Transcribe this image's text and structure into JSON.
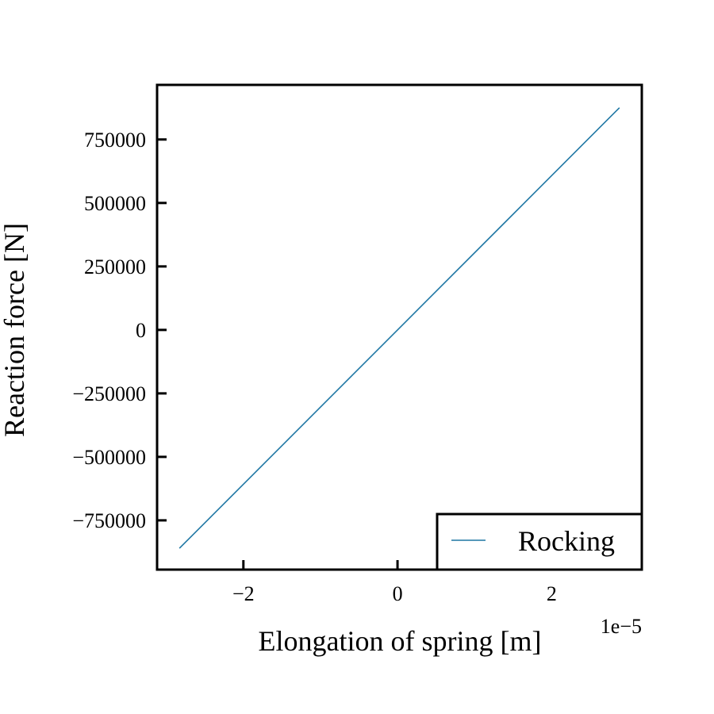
{
  "chart_data": {
    "type": "line",
    "title": "",
    "xlabel": "Elongation of spring [m]",
    "ylabel": "Reaction force [N]",
    "x_offset_label": "1e−5",
    "x_scale_factor": 1e-05,
    "xlim": [
      -3.12e-05,
      3.17e-05
    ],
    "ylim": [
      -944000,
      965000
    ],
    "x_ticks": [
      -2e-05,
      0,
      2e-05
    ],
    "x_tick_labels": [
      "−2",
      "0",
      "2"
    ],
    "y_ticks": [
      -750000,
      -500000,
      -250000,
      0,
      250000,
      500000,
      750000
    ],
    "y_tick_labels": [
      "−750000",
      "−500000",
      "−250000",
      "0",
      "250000",
      "500000",
      "750000"
    ],
    "grid": false,
    "legend_position": "lower-right",
    "series": [
      {
        "name": "Rocking",
        "color": "#1f77a4",
        "x": [
          -2.83e-05,
          2.88e-05
        ],
        "y": [
          -860000,
          875000
        ]
      }
    ]
  }
}
